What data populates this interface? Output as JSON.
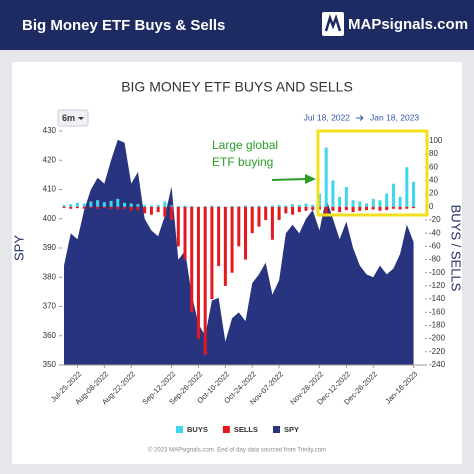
{
  "header": {
    "title": "Big Money ETF Buys & Sells",
    "brand": "MAPsignals.com"
  },
  "chart_data": {
    "type": "combo",
    "title": "BIG MONEY ETF BUYS AND SELLS",
    "range_button": "6m",
    "date_from": "Jul 18, 2022",
    "date_to": "Jan 18, 2023",
    "y_label": "SPY",
    "y2_label": "BUYS / SELLS",
    "annotation": [
      "Large global",
      "ETF buying"
    ],
    "footer": "© 2023 MAPsignals.com. End of day data sourced from Trinity.com",
    "categories": [
      null,
      null,
      "Jul-25-2022",
      null,
      null,
      null,
      "Aug-08-2022",
      null,
      null,
      null,
      "Aug-22-2022",
      null,
      null,
      null,
      null,
      null,
      "Sep-12-2022",
      null,
      null,
      null,
      "Sep-26-2022",
      null,
      null,
      null,
      "Oct-10-2022",
      null,
      null,
      null,
      "Oct-24-2022",
      null,
      null,
      null,
      "Nov-07-2022",
      null,
      null,
      null,
      null,
      null,
      "Nov-28-2022",
      null,
      null,
      null,
      "Dec-12-2022",
      null,
      null,
      null,
      "Dec-26-2022",
      null,
      null,
      null,
      null,
      null,
      "Jan-16-2023"
    ],
    "series": [
      {
        "name": "BUYS",
        "type": "bar",
        "axis": "y2",
        "color": "#3fd6ea",
        "values": [
          3,
          4,
          6,
          5,
          8,
          10,
          7,
          9,
          12,
          6,
          5,
          4,
          3,
          2,
          3,
          8,
          2,
          1,
          2,
          1,
          0,
          1,
          2,
          1,
          0,
          1,
          1,
          2,
          1,
          2,
          1,
          2,
          3,
          2,
          4,
          3,
          5,
          3,
          20,
          90,
          40,
          15,
          30,
          10,
          8,
          5,
          12,
          10,
          20,
          35,
          15,
          60,
          38
        ]
      },
      {
        "name": "SELLS",
        "type": "bar",
        "axis": "y2",
        "color": "#e3191f",
        "values": [
          -2,
          -3,
          -2,
          -3,
          -2,
          -3,
          -2,
          -3,
          -4,
          -3,
          -6,
          -5,
          -10,
          -12,
          -8,
          -15,
          -20,
          -60,
          -80,
          -160,
          -200,
          -225,
          -140,
          -90,
          -120,
          -100,
          -60,
          -80,
          -40,
          -30,
          -20,
          -50,
          -20,
          -10,
          -12,
          -8,
          -6,
          -5,
          -4,
          -10,
          -6,
          -8,
          -5,
          -8,
          -6,
          -5,
          -4,
          -6,
          -5,
          -3,
          -4,
          -3,
          -2
        ]
      },
      {
        "name": "SPY",
        "type": "area",
        "axis": "y",
        "color": "#28347f",
        "values": [
          384,
          395,
          393,
          403,
          410,
          414,
          412,
          420,
          427,
          426,
          412,
          416,
          400,
          396,
          394,
          401,
          411,
          386,
          389,
          374,
          364,
          360,
          372,
          373,
          358,
          366,
          368,
          365,
          378,
          381,
          385,
          374,
          379,
          395,
          398,
          395,
          400,
          403,
          396,
          407,
          400,
          393,
          399,
          390,
          384,
          381,
          380,
          384,
          381,
          383,
          388,
          398,
          392
        ]
      }
    ],
    "ylim": [
      350,
      430
    ],
    "yticks": [
      350,
      360,
      370,
      380,
      390,
      400,
      410,
      420,
      430
    ],
    "y2lim": [
      -240,
      115
    ],
    "y2ticks": [
      -240,
      -220,
      -200,
      -180,
      -160,
      -140,
      -120,
      -100,
      -80,
      -60,
      -40,
      -20,
      0,
      20,
      40,
      60,
      80,
      100
    ],
    "grid": false
  }
}
